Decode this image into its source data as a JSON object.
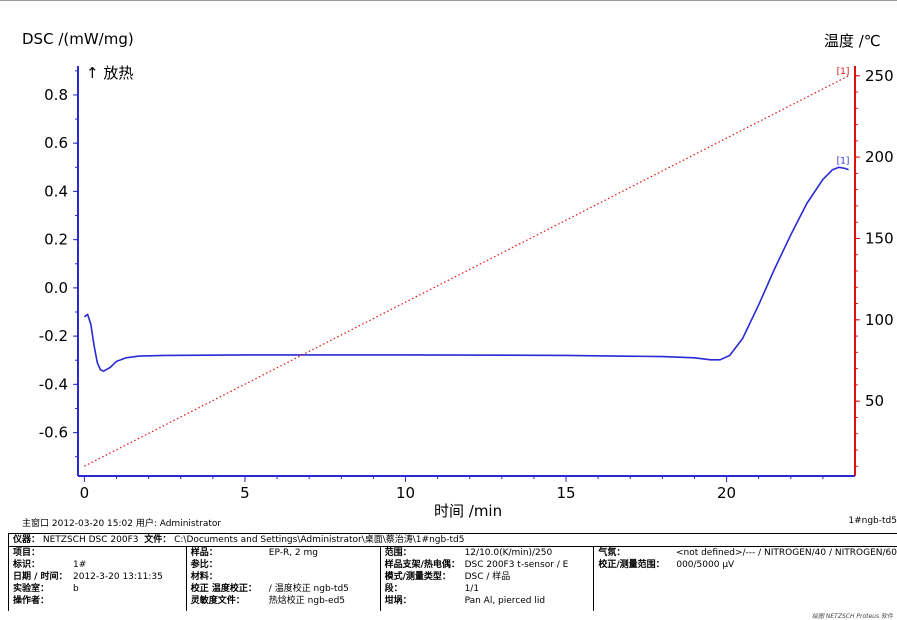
{
  "chart_data": {
    "type": "line",
    "left_axis_title": "DSC /(mW/mg)",
    "right_axis_title": "温度 /℃",
    "exo_label": "↑ 放热",
    "xlabel": "时间 /min",
    "xlim": [
      -0.2,
      24.0
    ],
    "ylim_left": [
      -0.78,
      0.92
    ],
    "ylim_right": [
      4,
      256
    ],
    "x_ticks": [
      0,
      5,
      10,
      15,
      20
    ],
    "y_left_ticks": [
      0.8,
      0.6,
      0.4,
      0.2,
      0.0,
      -0.2,
      -0.4,
      -0.6
    ],
    "y_left_tick_labels": [
      "0.8",
      "0.6",
      "0.4",
      "0.2",
      "0.0",
      "-0.2",
      "-0.4",
      "-0.6"
    ],
    "y_right_ticks": [
      250,
      200,
      150,
      100,
      50
    ],
    "series": [
      {
        "name": "DSC",
        "axis": "left",
        "color": "#2a2ad4",
        "style": "solid",
        "points": [
          [
            0.0,
            -0.12
          ],
          [
            0.1,
            -0.11
          ],
          [
            0.2,
            -0.15
          ],
          [
            0.3,
            -0.24
          ],
          [
            0.4,
            -0.31
          ],
          [
            0.5,
            -0.34
          ],
          [
            0.6,
            -0.345
          ],
          [
            0.8,
            -0.33
          ],
          [
            1.0,
            -0.305
          ],
          [
            1.3,
            -0.29
          ],
          [
            1.7,
            -0.283
          ],
          [
            2.5,
            -0.28
          ],
          [
            5.0,
            -0.278
          ],
          [
            10.0,
            -0.278
          ],
          [
            15.0,
            -0.28
          ],
          [
            18.0,
            -0.285
          ],
          [
            19.0,
            -0.29
          ],
          [
            19.5,
            -0.298
          ],
          [
            19.8,
            -0.298
          ],
          [
            20.1,
            -0.28
          ],
          [
            20.5,
            -0.21
          ],
          [
            21.0,
            -0.07
          ],
          [
            21.5,
            0.08
          ],
          [
            22.0,
            0.22
          ],
          [
            22.5,
            0.35
          ],
          [
            23.0,
            0.45
          ],
          [
            23.3,
            0.49
          ],
          [
            23.5,
            0.5
          ],
          [
            23.7,
            0.495
          ],
          [
            23.8,
            0.49
          ]
        ]
      },
      {
        "name": "Temperature",
        "axis": "right",
        "color": "#e01010",
        "style": "dotted",
        "points": [
          [
            0.0,
            10.0
          ],
          [
            23.8,
            250.0
          ]
        ]
      }
    ],
    "curve_markers": [
      "[1]",
      "[1]"
    ]
  },
  "footer": {
    "left_text": "主窗口  2012-03-20 15:02  用户: Administrator",
    "right_text": "1#ngb-td5"
  },
  "info": {
    "header_html_parts": {
      "instrument_key": "仪器：",
      "instrument_val": "NETZSCH DSC 200F3",
      "file_key": "文件：",
      "file_val": "C:\\Documents and Settings\\Administrator\\桌面\\蔡治涛\\1#ngb-td5"
    },
    "col1": [
      {
        "k": "项目：",
        "v": ""
      },
      {
        "k": "标识：",
        "v": "1#"
      },
      {
        "k": "日期 / 时间：",
        "v": "2012-3-20 13:11:35"
      },
      {
        "k": "实验室：",
        "v": "b"
      },
      {
        "k": "操作者：",
        "v": ""
      }
    ],
    "col2": [
      {
        "k": "样品：",
        "v": "EP-R, 2 mg"
      },
      {
        "k": "参比：",
        "v": ""
      },
      {
        "k": "材料：",
        "v": ""
      },
      {
        "k": "校正 温度校正：",
        "v": "/ 温度校正 ngb-td5"
      },
      {
        "k": "灵敏度文件：",
        "v": "热焓校正 ngb-ed5"
      }
    ],
    "col3": [
      {
        "k": "范围：",
        "v": "12/10.0(K/min)/250"
      },
      {
        "k": "样品支架/热电偶：",
        "v": "DSC 200F3 t-sensor / E"
      },
      {
        "k": "模式/测量类型：",
        "v": "DSC / 样品"
      },
      {
        "k": "段：",
        "v": "1/1"
      },
      {
        "k": "坩埚：",
        "v": "Pan Al, pierced lid"
      }
    ],
    "col4": [
      {
        "k": "气氛：",
        "v": "<not defined>/--- / NITROGEN/40 / NITROGEN/60"
      },
      {
        "k": "校正/测量范围：",
        "v": "000/5000 µV"
      }
    ]
  },
  "credit": "绘图 NETZSCH Proteus 软件"
}
